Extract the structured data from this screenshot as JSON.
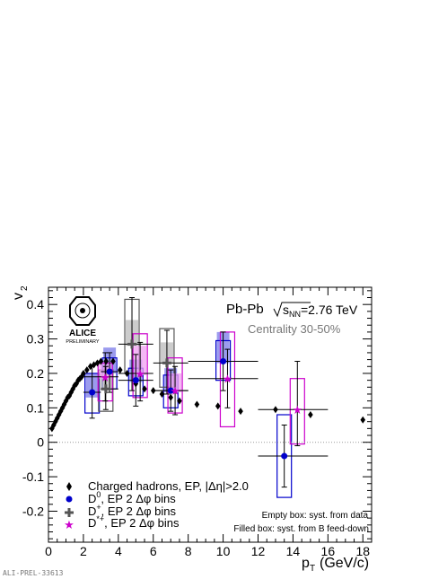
{
  "chart_data": {
    "type": "scatter",
    "title": "",
    "xlabel": "p_T (GeV/c)",
    "ylabel": "v_2",
    "xlim": [
      0,
      18.5
    ],
    "ylim": [
      -0.29,
      0.45
    ],
    "x_ticks": [
      "0",
      "2",
      "4",
      "6",
      "8",
      "10",
      "12",
      "14",
      "16",
      "18"
    ],
    "y_ticks": [
      "-0.2",
      "-0.1",
      "0",
      "0.1",
      "0.2",
      "0.3",
      "0.4"
    ],
    "system_label": "Pb-Pb",
    "energy_label": "√sNN=2.76 TeV",
    "centrality_label": "Centrality 30-50%",
    "note_empty_box": "Empty box: syst. from data",
    "note_filled_box": "Filled box: syst. from B feed-down",
    "logo_text": "ALICE",
    "logo_sub": "PRELIMINARY",
    "watermark": "ALI-PREL-33613",
    "legend_position": "bottom-left",
    "colors": {
      "hadrons": "#000000",
      "d0": "#0000cc",
      "dplus": "#555555",
      "dstar": "#cc00cc",
      "d0_fill": "#7a7ae8",
      "dplus_fill": "#bbbbbb",
      "dstar_fill": "#f0a0f0"
    },
    "series": [
      {
        "name": "Charged hadrons, EP, |Δη|>2.0",
        "marker": "diamond",
        "points": [
          {
            "x": 0.2,
            "y": 0.04
          },
          {
            "x": 0.3,
            "y": 0.05
          },
          {
            "x": 0.4,
            "y": 0.06
          },
          {
            "x": 0.5,
            "y": 0.07
          },
          {
            "x": 0.6,
            "y": 0.08
          },
          {
            "x": 0.7,
            "y": 0.09
          },
          {
            "x": 0.8,
            "y": 0.1
          },
          {
            "x": 0.9,
            "y": 0.11
          },
          {
            "x": 1.0,
            "y": 0.12
          },
          {
            "x": 1.1,
            "y": 0.13
          },
          {
            "x": 1.2,
            "y": 0.135
          },
          {
            "x": 1.3,
            "y": 0.145
          },
          {
            "x": 1.4,
            "y": 0.155
          },
          {
            "x": 1.5,
            "y": 0.165
          },
          {
            "x": 1.6,
            "y": 0.17
          },
          {
            "x": 1.7,
            "y": 0.18
          },
          {
            "x": 1.8,
            "y": 0.185
          },
          {
            "x": 1.9,
            "y": 0.19
          },
          {
            "x": 2.0,
            "y": 0.2
          },
          {
            "x": 2.2,
            "y": 0.21
          },
          {
            "x": 2.4,
            "y": 0.22
          },
          {
            "x": 2.6,
            "y": 0.225
          },
          {
            "x": 2.8,
            "y": 0.23
          },
          {
            "x": 3.0,
            "y": 0.235
          },
          {
            "x": 3.3,
            "y": 0.235
          },
          {
            "x": 3.7,
            "y": 0.235
          },
          {
            "x": 4.1,
            "y": 0.21
          },
          {
            "x": 4.5,
            "y": 0.2
          },
          {
            "x": 5.0,
            "y": 0.17
          },
          {
            "x": 5.5,
            "y": 0.155
          },
          {
            "x": 6.0,
            "y": 0.15
          },
          {
            "x": 6.5,
            "y": 0.14
          },
          {
            "x": 7.0,
            "y": 0.13
          },
          {
            "x": 7.5,
            "y": 0.12
          },
          {
            "x": 8.5,
            "y": 0.11
          },
          {
            "x": 9.7,
            "y": 0.105
          },
          {
            "x": 11.0,
            "y": 0.09
          },
          {
            "x": 13.0,
            "y": 0.095
          },
          {
            "x": 15.0,
            "y": 0.08
          },
          {
            "x": 18.0,
            "y": 0.065
          }
        ]
      },
      {
        "name": "D0, EP 2 Δφ bins",
        "marker": "circle",
        "points": [
          {
            "x": 2.5,
            "y": 0.145,
            "xlo": 2.0,
            "xhi": 3.0,
            "ylo": 0.07,
            "yhi": 0.22,
            "syst": [
              0.085,
              0.2
            ],
            "fill": [
              0.13,
              0.2
            ]
          },
          {
            "x": 3.5,
            "y": 0.205,
            "xlo": 3.0,
            "xhi": 4.0,
            "ylo": 0.145,
            "yhi": 0.26,
            "syst": [
              0.155,
              0.245
            ],
            "fill": [
              0.2,
              0.275
            ]
          },
          {
            "x": 5.0,
            "y": 0.18,
            "xlo": 4.0,
            "xhi": 6.0,
            "ylo": 0.105,
            "yhi": 0.255,
            "syst": [
              0.135,
              0.215
            ],
            "fill": [
              0.175,
              0.24
            ]
          },
          {
            "x": 7.0,
            "y": 0.15,
            "xlo": 6.0,
            "xhi": 8.0,
            "ylo": 0.09,
            "yhi": 0.21,
            "syst": [
              0.1,
              0.195
            ],
            "fill": [
              0.145,
              0.215
            ]
          },
          {
            "x": 10.0,
            "y": 0.235,
            "xlo": 8.0,
            "xhi": 12.0,
            "ylo": 0.15,
            "yhi": 0.32,
            "syst": [
              0.18,
              0.295
            ],
            "fill": [
              0.23,
              0.32
            ]
          },
          {
            "x": 13.5,
            "y": -0.04,
            "xlo": 12.0,
            "xhi": 16.0,
            "ylo": -0.13,
            "yhi": 0.05,
            "syst": [
              -0.16,
              0.08
            ],
            "fill": null
          }
        ]
      },
      {
        "name": "D+, EP 2 Δφ bins",
        "marker": "cross",
        "points": [
          {
            "x": 3.5,
            "y": 0.155,
            "xlo": 3.0,
            "xhi": 4.0,
            "ylo": 0.095,
            "yhi": 0.22,
            "syst": [
              0.09,
              0.21
            ],
            "fill": [
              0.15,
              0.2
            ]
          },
          {
            "x": 5.0,
            "y": 0.285,
            "xlo": 4.0,
            "xhi": 6.0,
            "ylo": 0.15,
            "yhi": 0.42,
            "syst": [
              0.2,
              0.415
            ],
            "fill": [
              0.28,
              0.355
            ]
          },
          {
            "x": 7.0,
            "y": 0.23,
            "xlo": 6.0,
            "xhi": 8.0,
            "ylo": 0.14,
            "yhi": 0.325,
            "syst": [
              0.16,
              0.33
            ],
            "fill": [
              0.23,
              0.29
            ]
          }
        ]
      },
      {
        "name": "D*+, EP 2 Δφ bins",
        "marker": "star",
        "points": [
          {
            "x": 3.0,
            "y": 0.19,
            "xlo": 2.0,
            "xhi": 4.0,
            "ylo": 0.12,
            "yhi": 0.26,
            "syst": [
              0.12,
              0.23
            ],
            "fill": [
              0.185,
              0.23
            ]
          },
          {
            "x": 5.0,
            "y": 0.2,
            "xlo": 4.0,
            "xhi": 6.0,
            "ylo": 0.12,
            "yhi": 0.29,
            "syst": [
              0.13,
              0.315
            ],
            "fill": [
              0.195,
              0.28
            ]
          },
          {
            "x": 7.0,
            "y": 0.15,
            "xlo": 6.0,
            "xhi": 8.0,
            "ylo": 0.08,
            "yhi": 0.22,
            "syst": [
              0.085,
              0.245
            ],
            "fill": [
              0.145,
              0.2
            ]
          },
          {
            "x": 10.0,
            "y": 0.185,
            "xlo": 8.0,
            "xhi": 12.0,
            "ylo": 0.1,
            "yhi": 0.27,
            "syst": [
              0.045,
              0.32
            ],
            "fill": null
          },
          {
            "x": 14.0,
            "y": 0.095,
            "xlo": 12.0,
            "xhi": 16.0,
            "ylo": -0.01,
            "yhi": 0.235,
            "syst": [
              -0.005,
              0.185
            ],
            "fill": null
          }
        ]
      }
    ]
  }
}
